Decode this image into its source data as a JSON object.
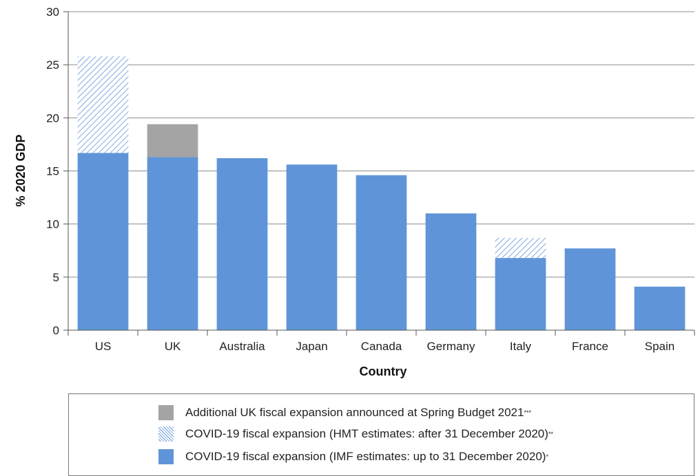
{
  "chart_data": {
    "type": "bar",
    "stacked": true,
    "categories": [
      "US",
      "UK",
      "Australia",
      "Japan",
      "Canada",
      "Germany",
      "Italy",
      "France",
      "Spain"
    ],
    "series": [
      {
        "name": "COVID-19 fiscal expansion (IMF estimates: up to 31 December 2020)",
        "legend_marker": "*",
        "values": [
          16.7,
          16.3,
          16.2,
          15.6,
          14.6,
          11.0,
          6.8,
          7.7,
          4.1
        ],
        "color": "#5f95d8",
        "pattern": "solid"
      },
      {
        "name": "COVID-19 fiscal expansion (HMT estimates: after 31 December 2020)",
        "legend_marker": "**",
        "values": [
          9.1,
          0,
          0,
          0,
          0,
          0,
          1.9,
          0,
          0
        ],
        "color": "#5f95d8",
        "pattern": "hatched"
      },
      {
        "name": "Additional UK fiscal expansion announced at Spring Budget 2021",
        "legend_marker": "***",
        "values": [
          0,
          3.1,
          0,
          0,
          0,
          0,
          0,
          0,
          0
        ],
        "color": "#a4a4a4",
        "pattern": "solid"
      }
    ],
    "xlabel": "Country",
    "ylabel": "% 2020 GDP",
    "ylim": [
      0,
      30
    ],
    "yticks": [
      0,
      5,
      10,
      15,
      20,
      25,
      30
    ],
    "grid": true,
    "legend_position": "bottom"
  },
  "legend": {
    "items": [
      {
        "label": "Additional UK fiscal expansion announced at Spring Budget 2021",
        "marker": "***",
        "swatch": "gray"
      },
      {
        "label": "COVID-19 fiscal expansion (HMT estimates: after 31 December 2020)",
        "marker": "**",
        "swatch": "hatched"
      },
      {
        "label": "COVID-19 fiscal expansion (IMF estimates: up to 31 December 2020)",
        "marker": "*",
        "swatch": "blue"
      }
    ]
  }
}
